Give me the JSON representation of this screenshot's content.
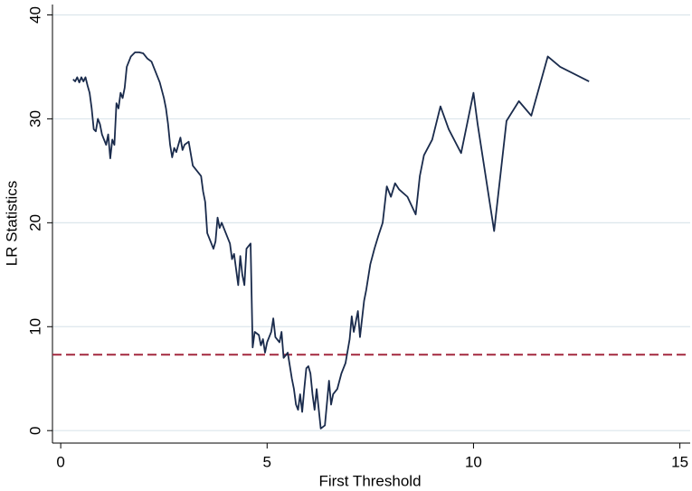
{
  "chart_data": {
    "type": "line",
    "xlabel": "First Threshold",
    "ylabel": "LR Statistics",
    "xlim": [
      -0.2,
      15.25
    ],
    "ylim": [
      -1.2,
      41
    ],
    "xticks": [
      0,
      5,
      10,
      15
    ],
    "yticks": [
      0,
      10,
      20,
      30,
      40
    ],
    "grid": true,
    "reference_line": {
      "value": 7.3,
      "color": "#a3283f",
      "style": "dashed"
    },
    "series": [
      {
        "color": "#1a2b4c",
        "x": [
          0.3,
          0.35,
          0.4,
          0.45,
          0.5,
          0.55,
          0.6,
          0.65,
          0.7,
          0.75,
          0.8,
          0.85,
          0.9,
          0.95,
          1.0,
          1.05,
          1.1,
          1.15,
          1.2,
          1.25,
          1.3,
          1.35,
          1.4,
          1.45,
          1.5,
          1.55,
          1.6,
          1.7,
          1.8,
          1.9,
          2.0,
          2.1,
          2.2,
          2.3,
          2.4,
          2.5,
          2.55,
          2.6,
          2.65,
          2.7,
          2.75,
          2.8,
          2.85,
          2.9,
          2.95,
          3.0,
          3.1,
          3.2,
          3.3,
          3.4,
          3.45,
          3.5,
          3.55,
          3.6,
          3.7,
          3.75,
          3.8,
          3.85,
          3.9,
          4.0,
          4.1,
          4.15,
          4.2,
          4.3,
          4.35,
          4.4,
          4.45,
          4.5,
          4.6,
          4.65,
          4.7,
          4.8,
          4.85,
          4.9,
          4.95,
          5.0,
          5.1,
          5.15,
          5.2,
          5.3,
          5.35,
          5.4,
          5.5,
          5.6,
          5.65,
          5.7,
          5.75,
          5.8,
          5.85,
          5.9,
          5.95,
          6.0,
          6.05,
          6.1,
          6.15,
          6.2,
          6.3,
          6.4,
          6.5,
          6.55,
          6.6,
          6.7,
          6.8,
          6.9,
          7.0,
          7.05,
          7.1,
          7.2,
          7.25,
          7.35,
          7.4,
          7.5,
          7.6,
          7.7,
          7.8,
          7.9,
          8.0,
          8.1,
          8.2,
          8.4,
          8.6,
          8.7,
          8.8,
          9.0,
          9.2,
          9.4,
          9.7,
          10.0,
          10.1,
          10.5,
          10.8,
          11.1,
          11.4,
          11.8,
          12.1,
          12.8
        ],
        "values": [
          33.8,
          33.6,
          34,
          33.5,
          34,
          33.6,
          34,
          33.2,
          32.5,
          31,
          29,
          28.8,
          30,
          29.5,
          28.5,
          28,
          27.5,
          28.5,
          26.2,
          28,
          27.5,
          31.5,
          31,
          32.5,
          32,
          33,
          35,
          36,
          36.4,
          36.4,
          36.3,
          35.8,
          35.5,
          34.5,
          33.5,
          32,
          31,
          29.5,
          27.5,
          26.3,
          27.2,
          26.8,
          27.5,
          28.2,
          27,
          27.5,
          27.8,
          25.5,
          25,
          24.5,
          23,
          22,
          19,
          18.5,
          17.5,
          18.2,
          20.5,
          19.5,
          20,
          19,
          18,
          16.5,
          17,
          14,
          16.8,
          15,
          14,
          17.5,
          18,
          8,
          9.5,
          9.2,
          8.2,
          8.8,
          7.5,
          8.5,
          9.5,
          10.8,
          9,
          8.5,
          9.5,
          7,
          7.5,
          5,
          4,
          2.5,
          2,
          3.5,
          1.8,
          4,
          6,
          6.2,
          5.5,
          3.5,
          2,
          4,
          0.2,
          0.5,
          4.8,
          2.5,
          3.5,
          4,
          5.5,
          6.5,
          8.8,
          11,
          9.5,
          11.5,
          9,
          12.5,
          13.5,
          16,
          17.5,
          18.8,
          20,
          23.5,
          22.5,
          23.8,
          23.2,
          22.5,
          20.8,
          24.5,
          26.5,
          28,
          31.2,
          29,
          26.7,
          32.5,
          29.5,
          19.2,
          29.8,
          31.7,
          30.3,
          36,
          35,
          33.6
        ]
      }
    ]
  }
}
